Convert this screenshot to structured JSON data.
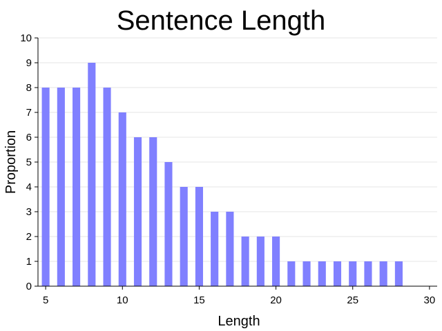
{
  "chart_data": {
    "type": "bar",
    "title": "Sentence Length",
    "xlabel": "Length",
    "ylabel": "Proportion",
    "x": [
      5,
      6,
      7,
      8,
      9,
      10,
      11,
      12,
      13,
      14,
      15,
      16,
      17,
      18,
      19,
      20,
      21,
      22,
      23,
      24,
      25,
      26,
      27,
      28
    ],
    "values": [
      8,
      8,
      8,
      9,
      8,
      7,
      6,
      6,
      5,
      4,
      4,
      3,
      3,
      2,
      2,
      2,
      1,
      1,
      1,
      1,
      1,
      1,
      1,
      1
    ],
    "xlim": [
      4.5,
      30.5
    ],
    "ylim": [
      0,
      10
    ],
    "x_ticks": [
      5,
      10,
      15,
      20,
      25,
      30
    ],
    "y_ticks": [
      0,
      1,
      2,
      3,
      4,
      5,
      6,
      7,
      8,
      9,
      10
    ],
    "grid": "horizontal",
    "legend": "none",
    "bar_color": "#8080ff"
  }
}
